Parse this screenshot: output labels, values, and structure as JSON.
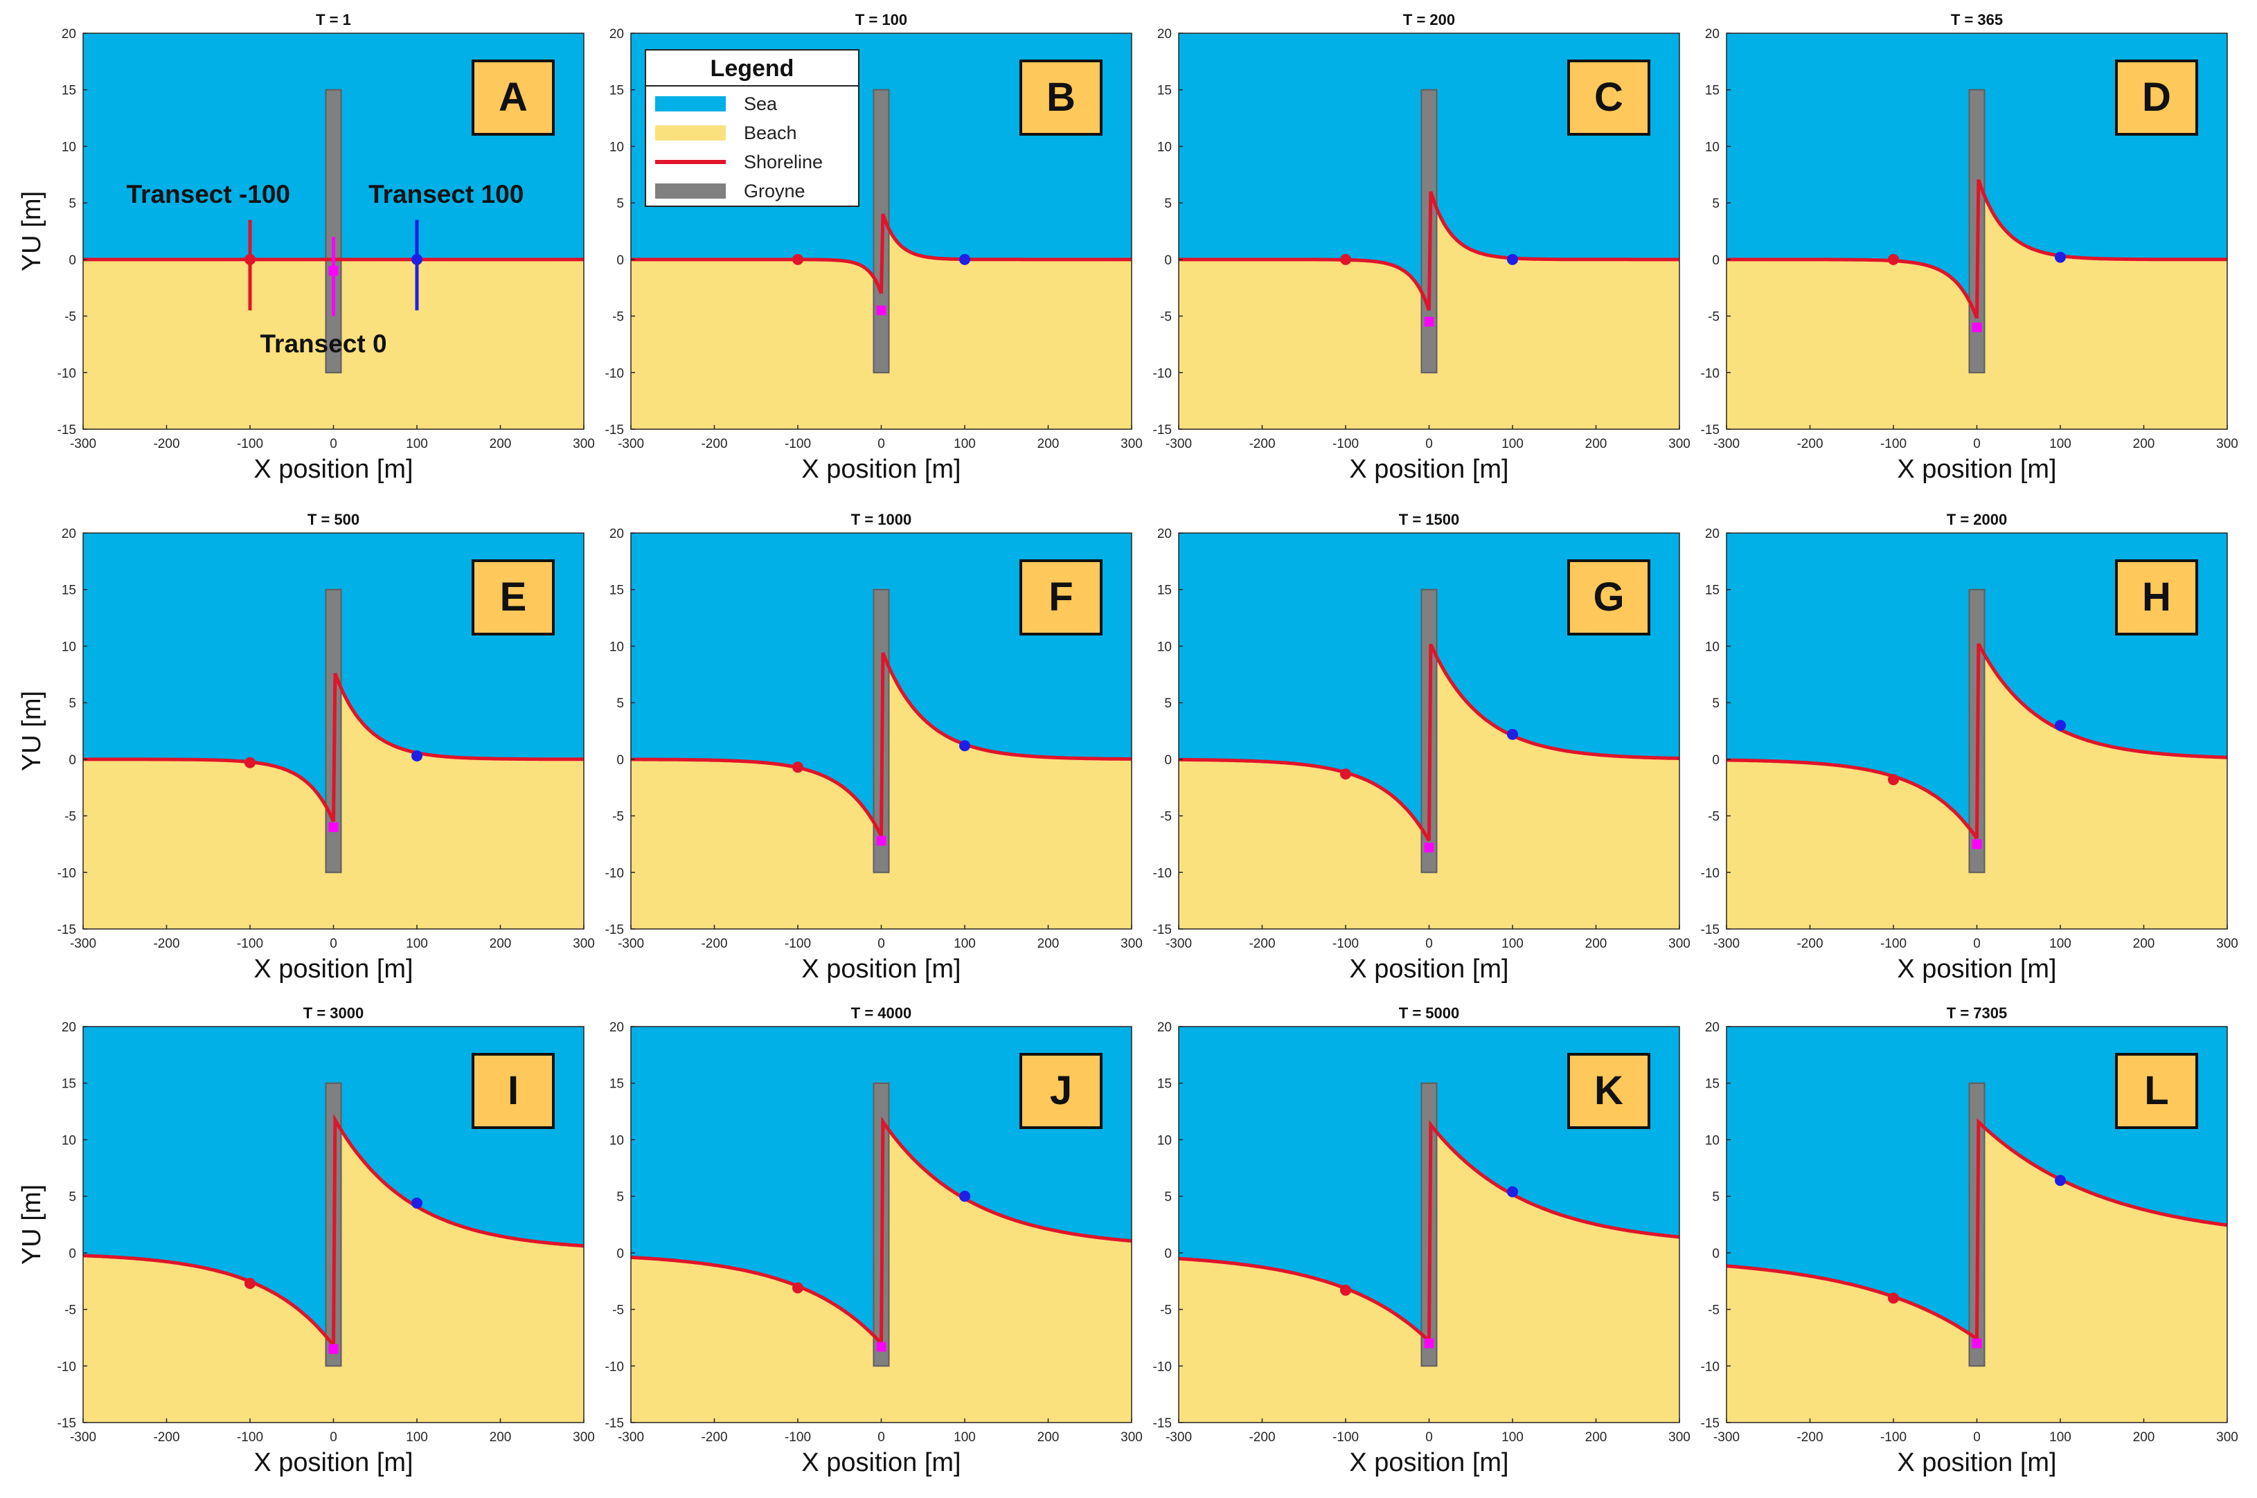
{
  "colors": {
    "sea": "#00B0E6",
    "beach": "#FBE07E",
    "shoreline": "#E0142A",
    "groyne": "#808080",
    "groyne_edge": "#5e5e5e",
    "badge_fill": "#FFC85A",
    "transect_minus100": "#E0142A",
    "transect_0": "#FF00FF",
    "transect_100": "#1F1FE6"
  },
  "legend": {
    "title": "Legend",
    "items": [
      {
        "label": "Sea",
        "color": "#00B0E6",
        "kind": "fill"
      },
      {
        "label": "Beach",
        "color": "#FBE07E",
        "kind": "fill"
      },
      {
        "label": "Shoreline",
        "color": "#E0142A",
        "kind": "line"
      },
      {
        "label": "Groyne",
        "color": "#808080",
        "kind": "fill"
      }
    ]
  },
  "transect_labels": {
    "minus100": "Transect -100",
    "zero": "Transect 0",
    "plus100": "Transect 100"
  },
  "chart_data": [
    {
      "type": "area",
      "panel": "A",
      "title": "T = 1",
      "xlabel": "X position [m]",
      "ylabel": "YU [m]",
      "xlim": [
        -300,
        300
      ],
      "ylim": [
        -15,
        20
      ],
      "xticks": [
        "-300",
        "-200",
        "-100",
        "0",
        "100",
        "200",
        "300"
      ],
      "yticks": [
        "20",
        "15",
        "10",
        "5",
        "0",
        "-5",
        "-10",
        "-15"
      ],
      "groyne": {
        "x": 0,
        "y_top": 15,
        "y_bottom": -10
      },
      "shoreline": {
        "left_end": 0,
        "up_y0": 0,
        "up_L": 20,
        "dn_y0": 0,
        "dn_L": 20,
        "right_end": 0
      },
      "markers": {
        "minus100": 0,
        "zero": -1,
        "plus100": 0
      }
    },
    {
      "type": "area",
      "panel": "B",
      "title": "T = 100",
      "xlabel": "X position [m]",
      "ylabel": "",
      "xlim": [
        -300,
        300
      ],
      "ylim": [
        -15,
        20
      ],
      "xticks": [
        "-300",
        "-200",
        "-100",
        "0",
        "100",
        "200",
        "300"
      ],
      "yticks": [
        "20",
        "15",
        "10",
        "5",
        "0",
        "-5",
        "-10",
        "-15"
      ],
      "groyne": {
        "x": 0,
        "y_top": 15,
        "y_bottom": -10
      },
      "shoreline": {
        "left_end": 0,
        "up_y0": 4.5,
        "up_L": 18,
        "dn_y0": -3,
        "dn_L": 14,
        "right_end": 0
      },
      "markers": {
        "minus100": 0,
        "zero": -4.5,
        "plus100": 0
      }
    },
    {
      "type": "area",
      "panel": "C",
      "title": "T = 200",
      "xlabel": "X position [m]",
      "ylabel": "",
      "xlim": [
        -300,
        300
      ],
      "ylim": [
        -15,
        20
      ],
      "xticks": [
        "-300",
        "-200",
        "-100",
        "0",
        "100",
        "200",
        "300"
      ],
      "yticks": [
        "20",
        "15",
        "10",
        "5",
        "0",
        "-5",
        "-10",
        "-15"
      ],
      "groyne": {
        "x": 0,
        "y_top": 15,
        "y_bottom": -10
      },
      "shoreline": {
        "left_end": 0,
        "up_y0": 6.5,
        "up_L": 25,
        "dn_y0": -4.5,
        "dn_L": 20,
        "right_end": 0
      },
      "markers": {
        "minus100": 0,
        "zero": -5.5,
        "plus100": 0
      }
    },
    {
      "type": "area",
      "panel": "D",
      "title": "T = 365",
      "xlabel": "X position [m]",
      "ylabel": "",
      "xlim": [
        -300,
        300
      ],
      "ylim": [
        -15,
        20
      ],
      "xticks": [
        "-300",
        "-200",
        "-100",
        "0",
        "100",
        "200",
        "300"
      ],
      "yticks": [
        "20",
        "15",
        "10",
        "5",
        "0",
        "-5",
        "-10",
        "-15"
      ],
      "groyne": {
        "x": 0,
        "y_top": 15,
        "y_bottom": -10
      },
      "shoreline": {
        "left_end": 0,
        "up_y0": 7.5,
        "up_L": 32,
        "dn_y0": -5.2,
        "dn_L": 26,
        "right_end": 0
      },
      "markers": {
        "minus100": 0,
        "zero": -6,
        "plus100": 0.2
      }
    },
    {
      "type": "area",
      "panel": "E",
      "title": "T = 500",
      "xlabel": "X position [m]",
      "ylabel": "YU [m]",
      "xlim": [
        -300,
        300
      ],
      "ylim": [
        -15,
        20
      ],
      "xticks": [
        "-300",
        "-200",
        "-100",
        "0",
        "100",
        "200",
        "300"
      ],
      "yticks": [
        "20",
        "15",
        "10",
        "5",
        "0",
        "-5",
        "-10",
        "-15"
      ],
      "groyne": {
        "x": 0,
        "y_top": 15,
        "y_bottom": -10
      },
      "shoreline": {
        "left_end": 0,
        "up_y0": 8,
        "up_L": 38,
        "dn_y0": -5.5,
        "dn_L": 32,
        "right_end": 0
      },
      "markers": {
        "minus100": -0.3,
        "zero": -6,
        "plus100": 0.3
      }
    },
    {
      "type": "area",
      "panel": "F",
      "title": "T = 1000",
      "xlabel": "X position [m]",
      "ylabel": "",
      "xlim": [
        -300,
        300
      ],
      "ylim": [
        -15,
        20
      ],
      "xticks": [
        "-300",
        "-200",
        "-100",
        "0",
        "100",
        "200",
        "300"
      ],
      "yticks": [
        "20",
        "15",
        "10",
        "5",
        "0",
        "-5",
        "-10",
        "-15"
      ],
      "groyne": {
        "x": 0,
        "y_top": 15,
        "y_bottom": -10
      },
      "shoreline": {
        "left_end": 0,
        "up_y0": 9.8,
        "up_L": 50,
        "dn_y0": -6.8,
        "dn_L": 45,
        "right_end": 0
      },
      "markers": {
        "minus100": -0.7,
        "zero": -7.2,
        "plus100": 1.2
      }
    },
    {
      "type": "area",
      "panel": "G",
      "title": "T = 1500",
      "xlabel": "X position [m]",
      "ylabel": "",
      "xlim": [
        -300,
        300
      ],
      "ylim": [
        -15,
        20
      ],
      "xticks": [
        "-300",
        "-200",
        "-100",
        "0",
        "100",
        "200",
        "300"
      ],
      "yticks": [
        "20",
        "15",
        "10",
        "5",
        "0",
        "-5",
        "-10",
        "-15"
      ],
      "groyne": {
        "x": 0,
        "y_top": 15,
        "y_bottom": -10
      },
      "shoreline": {
        "left_end": 0,
        "up_y0": 10.5,
        "up_L": 62,
        "dn_y0": -7.2,
        "dn_L": 55,
        "right_end": 0
      },
      "markers": {
        "minus100": -1.3,
        "zero": -7.8,
        "plus100": 2.2
      }
    },
    {
      "type": "area",
      "panel": "H",
      "title": "T = 2000",
      "xlabel": "X position [m]",
      "ylabel": "",
      "xlim": [
        -300,
        300
      ],
      "ylim": [
        -15,
        20
      ],
      "xticks": [
        "-300",
        "-200",
        "-100",
        "0",
        "100",
        "200",
        "300"
      ],
      "yticks": [
        "20",
        "15",
        "10",
        "5",
        "0",
        "-5",
        "-10",
        "-15"
      ],
      "groyne": {
        "x": 0,
        "y_top": 15,
        "y_bottom": -10
      },
      "shoreline": {
        "left_end": 0,
        "up_y0": 10.5,
        "up_L": 72,
        "dn_y0": -7,
        "dn_L": 65,
        "right_end": 0
      },
      "markers": {
        "minus100": -1.8,
        "zero": -7.5,
        "plus100": 3
      }
    },
    {
      "type": "area",
      "panel": "I",
      "title": "T = 3000",
      "xlabel": "X position [m]",
      "ylabel": "YU [m]",
      "xlim": [
        -300,
        300
      ],
      "ylim": [
        -15,
        20
      ],
      "xticks": [
        "-300",
        "-200",
        "-100",
        "0",
        "100",
        "200",
        "300"
      ],
      "yticks": [
        "20",
        "15",
        "10",
        "5",
        "0",
        "-5",
        "-10",
        "-15"
      ],
      "groyne": {
        "x": 0,
        "y_top": 15,
        "y_bottom": -10
      },
      "shoreline": {
        "left_end": 0,
        "up_y0": 12,
        "up_L": 90,
        "dn_y0": -8.2,
        "dn_L": 85,
        "right_end": 0.2
      },
      "markers": {
        "minus100": -2.7,
        "zero": -8.5,
        "plus100": 4.4
      }
    },
    {
      "type": "area",
      "panel": "J",
      "title": "T = 4000",
      "xlabel": "X position [m]",
      "ylabel": "",
      "xlim": [
        -300,
        300
      ],
      "ylim": [
        -15,
        20
      ],
      "xticks": [
        "-300",
        "-200",
        "-100",
        "0",
        "100",
        "200",
        "300"
      ],
      "yticks": [
        "20",
        "15",
        "10",
        "5",
        "0",
        "-5",
        "-10",
        "-15"
      ],
      "groyne": {
        "x": 0,
        "y_top": 15,
        "y_bottom": -10
      },
      "shoreline": {
        "left_end": 0,
        "up_y0": 11.8,
        "up_L": 105,
        "dn_y0": -8,
        "dn_L": 100,
        "right_end": 0.4
      },
      "markers": {
        "minus100": -3.1,
        "zero": -8.3,
        "plus100": 5
      }
    },
    {
      "type": "area",
      "panel": "K",
      "title": "T = 5000",
      "xlabel": "X position [m]",
      "ylabel": "",
      "xlim": [
        -300,
        300
      ],
      "ylim": [
        -15,
        20
      ],
      "xticks": [
        "-300",
        "-200",
        "-100",
        "0",
        "100",
        "200",
        "300"
      ],
      "yticks": [
        "20",
        "15",
        "10",
        "5",
        "0",
        "-5",
        "-10",
        "-15"
      ],
      "groyne": {
        "x": 0,
        "y_top": 15,
        "y_bottom": -10
      },
      "shoreline": {
        "left_end": 0,
        "up_y0": 11.5,
        "up_L": 115,
        "dn_y0": -7.8,
        "dn_L": 110,
        "right_end": 0.6
      },
      "markers": {
        "minus100": -3.3,
        "zero": -8,
        "plus100": 5.4
      }
    },
    {
      "type": "area",
      "panel": "L",
      "title": "T = 7305",
      "xlabel": "X position [m]",
      "ylabel": "",
      "xlim": [
        -300,
        300
      ],
      "ylim": [
        -15,
        20
      ],
      "xticks": [
        "-300",
        "-200",
        "-100",
        "0",
        "100",
        "200",
        "300"
      ],
      "yticks": [
        "20",
        "15",
        "10",
        "5",
        "0",
        "-5",
        "-10",
        "-15"
      ],
      "groyne": {
        "x": 0,
        "y_top": 15,
        "y_bottom": -10
      },
      "shoreline": {
        "left_end": -0.3,
        "up_y0": 11.7,
        "up_L": 150,
        "dn_y0": -7.6,
        "dn_L": 140,
        "right_end": 1
      },
      "markers": {
        "minus100": -4,
        "zero": -8,
        "plus100": 6.4
      }
    }
  ]
}
